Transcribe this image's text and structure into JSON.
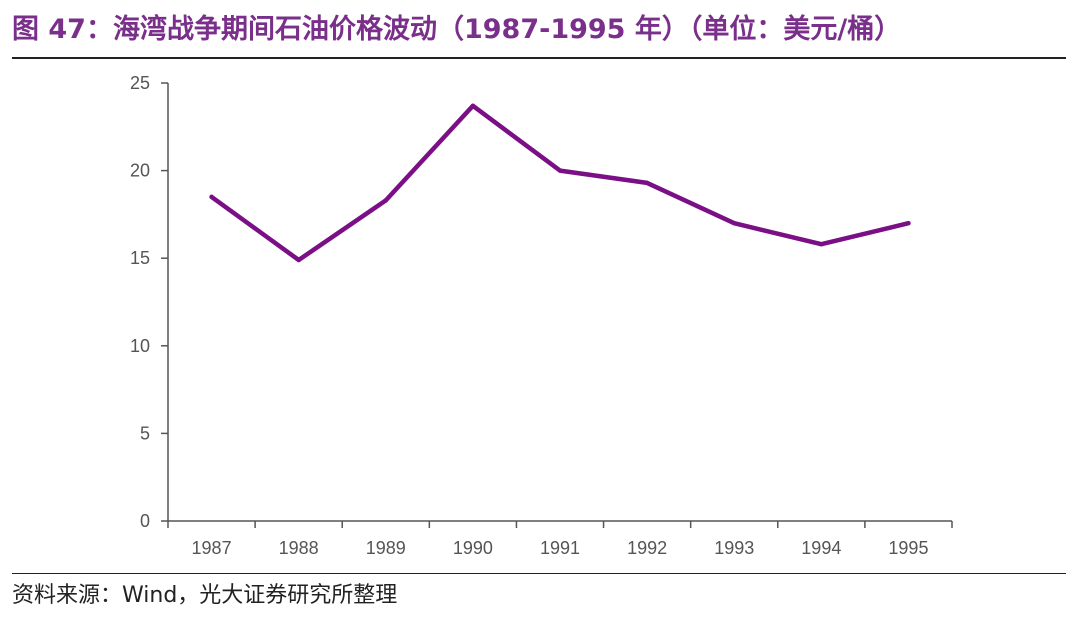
{
  "figure": {
    "title": "图 47：海湾战争期间石油价格波动（1987-1995 年）（单位：美元/桶）",
    "source": "资料来源：Wind，光大证券研究所整理"
  },
  "colors": {
    "title": "#7a2f8a",
    "line": "#7b0f86",
    "axis": "#555555",
    "tick_label": "#555555"
  },
  "chart_data": {
    "type": "line",
    "x": [
      "1987",
      "1988",
      "1989",
      "1990",
      "1991",
      "1992",
      "1993",
      "1994",
      "1995"
    ],
    "series": [
      {
        "values": [
          18.5,
          14.9,
          18.3,
          23.7,
          20.0,
          19.3,
          17.0,
          15.8,
          17.0
        ]
      }
    ],
    "ylim": [
      0,
      25
    ],
    "yticks": [
      0,
      5,
      10,
      15,
      20,
      25
    ],
    "grid": false,
    "legend": "none"
  }
}
